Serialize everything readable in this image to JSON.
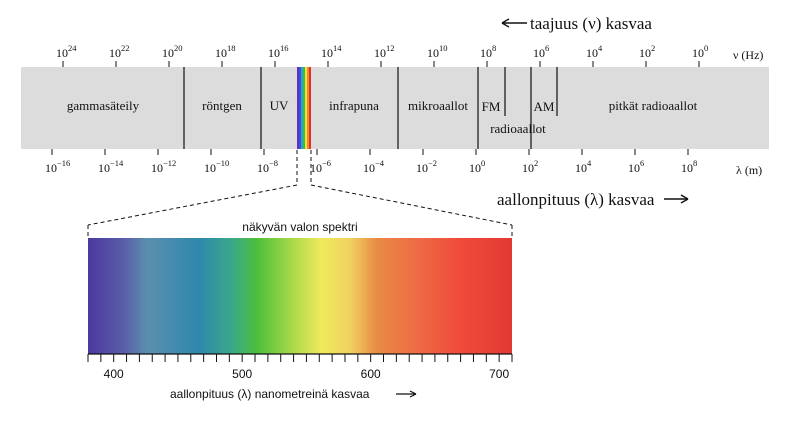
{
  "frequency_axis": {
    "title": "taajuus (ν) kasvaa",
    "unit_label": "ν (Hz)",
    "exponents": [
      "24",
      "22",
      "20",
      "18",
      "16",
      "14",
      "12",
      "10",
      "8",
      "6",
      "4",
      "2",
      "0"
    ]
  },
  "wavelength_axis": {
    "title": "aallonpituus (λ) kasvaa",
    "unit_label": "λ (m)",
    "exponents": [
      "−16",
      "−14",
      "−12",
      "−10",
      "−8",
      "−6",
      "−4",
      "−2",
      "0",
      "2",
      "4",
      "6",
      "8"
    ]
  },
  "regions": [
    {
      "label": "gammasäteily"
    },
    {
      "label": "röntgen"
    },
    {
      "label": "UV"
    },
    {
      "label": "infrapuna"
    },
    {
      "label": "mikroaallot"
    },
    {
      "label": "FM"
    },
    {
      "label": "radioaallot"
    },
    {
      "label": "AM"
    },
    {
      "label": "pitkät radioaallot"
    }
  ],
  "visible_spectrum": {
    "title": "näkyvän valon spektri",
    "axis_title": "aallonpituus (λ) nanometreinä kasvaa",
    "tick_labels": [
      "400",
      "500",
      "600",
      "700"
    ],
    "range_nm": [
      380,
      710
    ],
    "colors": {
      "violet": "#4b3c9e",
      "blue": "#2f86ad",
      "green": "#4cc03a",
      "yellow": "#ece95e",
      "orange": "#e98944",
      "red": "#e63a30"
    }
  }
}
